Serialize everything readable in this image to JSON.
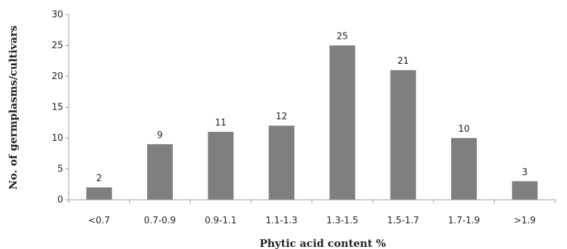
{
  "chart_data": {
    "type": "bar",
    "categories": [
      "<0.7",
      "0.7-0.9",
      "0.9-1.1",
      "1.1-1.3",
      "1.3-1.5",
      "1.5-1.7",
      "1.7-1.9",
      ">1.9"
    ],
    "values": [
      2,
      9,
      11,
      12,
      25,
      21,
      10,
      3
    ],
    "xlabel": "Phytic acid content %",
    "ylabel": "No. of germplasms/cultivars",
    "ylim": [
      0,
      30
    ],
    "yticks": [
      0,
      5,
      10,
      15,
      20,
      25,
      30
    ],
    "grid": false,
    "legend": "none",
    "bar_color": "#7f7f7f",
    "axis_color": "#9a9a9a"
  }
}
